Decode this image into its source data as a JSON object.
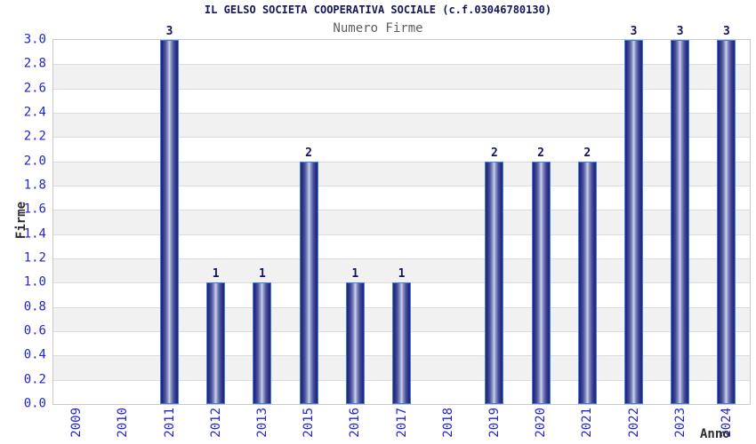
{
  "title": "IL GELSO SOCIETA COOPERATIVA SOCIALE (c.f.03046780130)",
  "subtitle": "Numero Firme",
  "chart_data": {
    "type": "bar",
    "title": "IL GELSO SOCIETA COOPERATIVA SOCIALE (c.f.03046780130)",
    "subtitle": "Numero Firme",
    "categories": [
      "2009",
      "2010",
      "2011",
      "2012",
      "2013",
      "2015",
      "2016",
      "2017",
      "2018",
      "2019",
      "2020",
      "2021",
      "2022",
      "2023",
      "2024"
    ],
    "values": [
      0,
      0,
      3,
      1,
      1,
      2,
      1,
      1,
      0,
      2,
      2,
      2,
      3,
      3,
      3
    ],
    "xlabel": "Anno",
    "ylabel": "Firme",
    "ylim": [
      0.0,
      3.0
    ],
    "ytick_step": 0.2,
    "grid": true,
    "legend": "none",
    "colors": {
      "bar_edge": "#23237c",
      "bar_center": "#ccd2ea",
      "bar_border": "#3f82dc",
      "tick_label": "#2323cd",
      "value_label": "#15155a",
      "title": "#15155a",
      "subtitle": "#5f5f5f",
      "band_gray": "#f1f1f1",
      "gridline": "#dcdcdc",
      "plot_border": "#c8c8c8",
      "background": "#ffffff"
    }
  }
}
